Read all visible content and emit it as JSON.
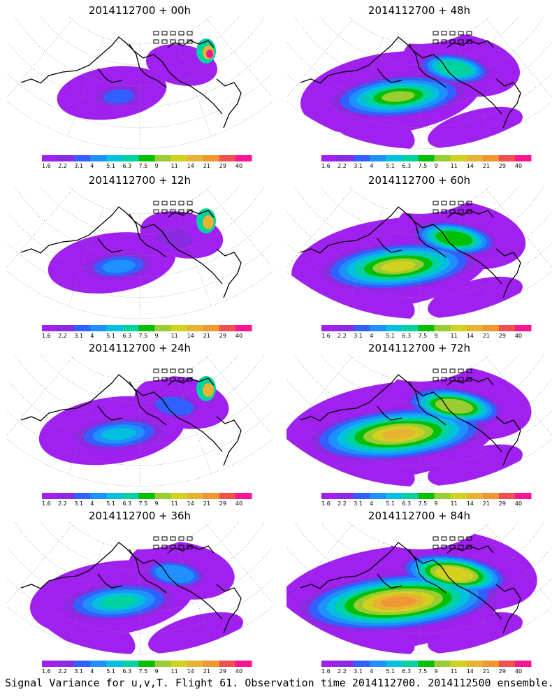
{
  "panels": [
    {
      "title": "2014112700 + 00h",
      "lead": 0
    },
    {
      "title": "2014112700 + 48h",
      "lead": 48
    },
    {
      "title": "2014112700 + 12h",
      "lead": 12
    },
    {
      "title": "2014112700 + 60h",
      "lead": 60
    },
    {
      "title": "2014112700 + 24h",
      "lead": 24
    },
    {
      "title": "2014112700 + 72h",
      "lead": 72
    },
    {
      "title": "2014112700 + 36h",
      "lead": 36
    },
    {
      "title": "2014112700 + 84h",
      "lead": 84
    }
  ],
  "colorbar": {
    "labels": [
      "1.6",
      "2.2",
      "3.1",
      "4",
      "5.1",
      "6.3",
      "7.5",
      "9",
      "11",
      "14",
      "21",
      "29",
      "40"
    ],
    "colors": [
      "#a020f0",
      "#8a2be2",
      "#3060ff",
      "#1e90ff",
      "#00c0e0",
      "#00d2a0",
      "#00c000",
      "#9acd32",
      "#d2d21e",
      "#e6b432",
      "#f09632",
      "#f05050",
      "#ff1493"
    ]
  },
  "caption": "Signal Variance for u,v,T. Flight 61. Observation time 2014112700. 2014112500 ensemble."
}
